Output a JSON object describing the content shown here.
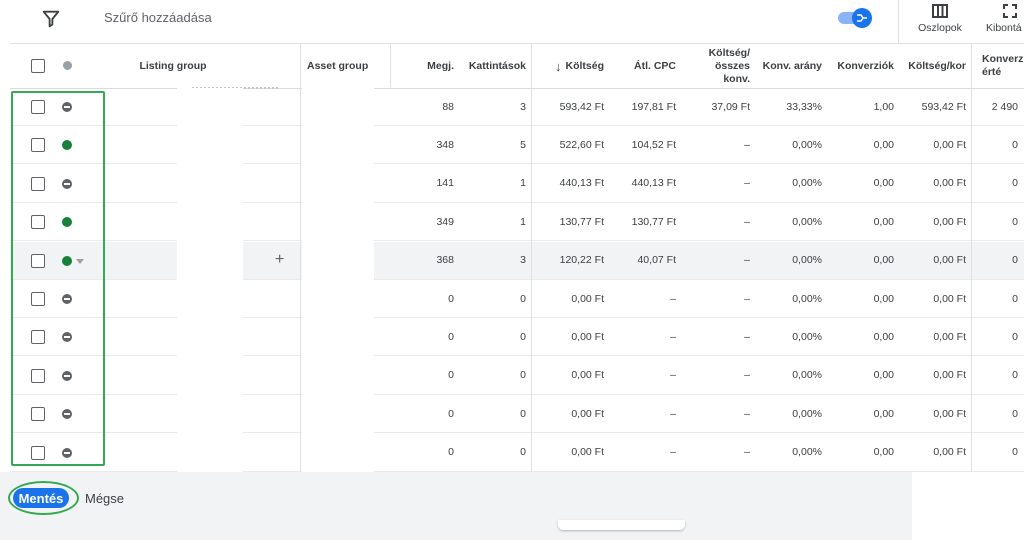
{
  "toolbar": {
    "filter_icon": "filter-icon",
    "filter_label": "Szűrő hozzáadása",
    "toggle_icon": "segment-toggle-icon",
    "columns_icon": "columns-icon",
    "columns_label": "Oszlopok",
    "expand_icon": "fullscreen-icon",
    "expand_label": "Kibontá"
  },
  "colors": {
    "accent": "#1a73e8",
    "enabled": "#188038",
    "paused": "#5f6368",
    "highlight": "#34a853",
    "footer_bg": "#f1f3f4"
  },
  "table": {
    "headers": {
      "listing_group": "Listing group",
      "asset_group": "Asset group",
      "impressions": "Megj.",
      "clicks": "Kattintások",
      "cost": "Költség",
      "avg_cpc": "Átl. CPC",
      "cost_per_all_conv": "Költség/ összes konv.",
      "conv_rate": "Konv. arány",
      "conversions": "Konverziók",
      "cost_per_conv": "Költség/kor",
      "conv_value": "Konverz érté"
    },
    "sort_icon": "arrow-down-icon",
    "rows": [
      {
        "status": "paused",
        "caret": false,
        "plus": false,
        "impr": "88",
        "clicks": "3",
        "cost": "593,42 Ft",
        "cpc": "197,81 Ft",
        "cpac": "37,09 Ft",
        "rate": "33,33%",
        "conv": "1,00",
        "cpconv": "593,42 Ft",
        "value": "2 490"
      },
      {
        "status": "enabled",
        "caret": false,
        "plus": false,
        "impr": "348",
        "clicks": "5",
        "cost": "522,60 Ft",
        "cpc": "104,52 Ft",
        "cpac": "–",
        "rate": "0,00%",
        "conv": "0,00",
        "cpconv": "0,00 Ft",
        "value": "0"
      },
      {
        "status": "paused",
        "caret": false,
        "plus": false,
        "impr": "141",
        "clicks": "1",
        "cost": "440,13 Ft",
        "cpc": "440,13 Ft",
        "cpac": "–",
        "rate": "0,00%",
        "conv": "0,00",
        "cpconv": "0,00 Ft",
        "value": "0"
      },
      {
        "status": "enabled",
        "caret": false,
        "plus": false,
        "impr": "349",
        "clicks": "1",
        "cost": "130,77 Ft",
        "cpc": "130,77 Ft",
        "cpac": "–",
        "rate": "0,00%",
        "conv": "0,00",
        "cpconv": "0,00 Ft",
        "value": "0"
      },
      {
        "status": "enabled",
        "caret": true,
        "plus": true,
        "impr": "368",
        "clicks": "3",
        "cost": "120,22 Ft",
        "cpc": "40,07 Ft",
        "cpac": "–",
        "rate": "0,00%",
        "conv": "0,00",
        "cpconv": "0,00 Ft",
        "value": "0"
      },
      {
        "status": "paused",
        "caret": false,
        "plus": false,
        "impr": "0",
        "clicks": "0",
        "cost": "0,00 Ft",
        "cpc": "–",
        "cpac": "–",
        "rate": "0,00%",
        "conv": "0,00",
        "cpconv": "0,00 Ft",
        "value": "0"
      },
      {
        "status": "paused",
        "caret": false,
        "plus": false,
        "impr": "0",
        "clicks": "0",
        "cost": "0,00 Ft",
        "cpc": "–",
        "cpac": "–",
        "rate": "0,00%",
        "conv": "0,00",
        "cpconv": "0,00 Ft",
        "value": "0"
      },
      {
        "status": "paused",
        "caret": false,
        "plus": false,
        "impr": "0",
        "clicks": "0",
        "cost": "0,00 Ft",
        "cpc": "–",
        "cpac": "–",
        "rate": "0,00%",
        "conv": "0,00",
        "cpconv": "0,00 Ft",
        "value": "0"
      },
      {
        "status": "paused",
        "caret": false,
        "plus": false,
        "impr": "0",
        "clicks": "0",
        "cost": "0,00 Ft",
        "cpc": "–",
        "cpac": "–",
        "rate": "0,00%",
        "conv": "0,00",
        "cpconv": "0,00 Ft",
        "value": "0"
      },
      {
        "status": "paused",
        "caret": false,
        "plus": false,
        "impr": "0",
        "clicks": "0",
        "cost": "0,00 Ft",
        "cpc": "–",
        "cpac": "–",
        "rate": "0,00%",
        "conv": "0,00",
        "cpconv": "0,00 Ft",
        "value": "0"
      }
    ]
  },
  "footer": {
    "save_label": "Mentés",
    "cancel_label": "Mégse"
  }
}
